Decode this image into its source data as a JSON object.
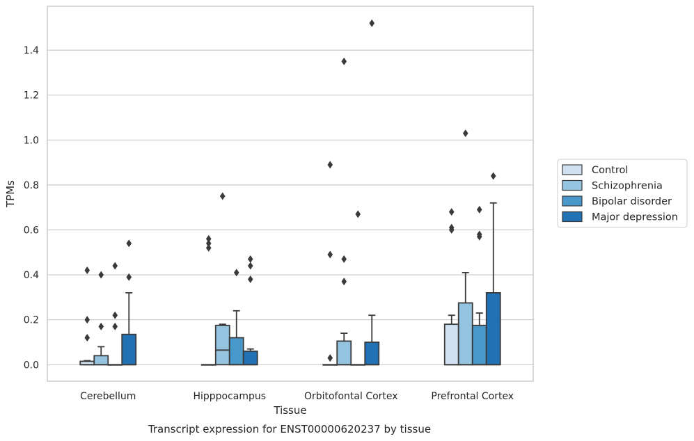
{
  "caption": "Transcript expression for ENST00000620237 by tissue",
  "colors": {
    "Control": "#d0e1f2",
    "Schizophrenia": "#94c4df",
    "Bipolar disorder": "#4a98c9",
    "Major depression": "#2171b5",
    "edge": "#3a3a3a",
    "grid": "#cccccc",
    "frame": "#cccccc"
  },
  "chart_data": {
    "type": "box",
    "xlabel": "Tissue",
    "ylabel": "TPMs",
    "ylim": [
      -0.075,
      1.59
    ],
    "yticks": [
      0.0,
      0.2,
      0.4,
      0.6,
      0.8,
      1.0,
      1.2,
      1.4
    ],
    "ytick_labels": [
      "0.0",
      "0.2",
      "0.4",
      "0.6",
      "0.8",
      "1.0",
      "1.2",
      "1.4"
    ],
    "grid": "horizontal",
    "legend_position": "right",
    "categories": [
      "Cerebellum",
      "Hipppocampus",
      "Orbitofontal Cortex",
      "Prefrontal Cortex"
    ],
    "series": [
      {
        "name": "Control",
        "boxes": [
          {
            "whislo": 0.0,
            "q1": 0.0,
            "med": 0.0,
            "q3": 0.015,
            "whishi": 0.018,
            "fliers": [
              0.12,
              0.2,
              0.42
            ]
          },
          {
            "whislo": 0.0,
            "q1": 0.0,
            "med": 0.0,
            "q3": 0.0,
            "whishi": 0.0,
            "fliers": [
              0.52,
              0.54,
              0.56
            ]
          },
          {
            "whislo": 0.0,
            "q1": 0.0,
            "med": 0.0,
            "q3": 0.0,
            "whishi": 0.0,
            "fliers": [
              0.03,
              0.49,
              0.89
            ]
          },
          {
            "whislo": 0.0,
            "q1": 0.0,
            "med": 0.0,
            "q3": 0.18,
            "whishi": 0.22,
            "fliers": [
              0.6,
              0.61,
              0.68
            ]
          }
        ]
      },
      {
        "name": "Schizophrenia",
        "boxes": [
          {
            "whislo": 0.0,
            "q1": 0.0,
            "med": 0.0,
            "q3": 0.04,
            "whishi": 0.08,
            "fliers": [
              0.17,
              0.4
            ]
          },
          {
            "whislo": 0.0,
            "q1": 0.0,
            "med": 0.065,
            "q3": 0.175,
            "whishi": 0.18,
            "fliers": [
              0.75
            ]
          },
          {
            "whislo": 0.0,
            "q1": 0.0,
            "med": 0.0,
            "q3": 0.105,
            "whishi": 0.14,
            "fliers": [
              0.37,
              0.47,
              1.35
            ]
          },
          {
            "whislo": 0.0,
            "q1": 0.0,
            "med": 0.0,
            "q3": 0.275,
            "whishi": 0.41,
            "fliers": [
              1.03
            ]
          }
        ]
      },
      {
        "name": "Bipolar disorder",
        "boxes": [
          {
            "whislo": 0.0,
            "q1": 0.0,
            "med": 0.0,
            "q3": 0.0,
            "whishi": 0.0,
            "fliers": [
              0.17,
              0.22,
              0.44
            ]
          },
          {
            "whislo": 0.0,
            "q1": 0.0,
            "med": 0.0,
            "q3": 0.12,
            "whishi": 0.24,
            "fliers": [
              0.41
            ]
          },
          {
            "whislo": 0.0,
            "q1": 0.0,
            "med": 0.0,
            "q3": 0.0,
            "whishi": 0.0,
            "fliers": [
              0.67
            ]
          },
          {
            "whislo": 0.0,
            "q1": 0.0,
            "med": 0.0,
            "q3": 0.175,
            "whishi": 0.23,
            "fliers": [
              0.57,
              0.58,
              0.69
            ]
          }
        ]
      },
      {
        "name": "Major depression",
        "boxes": [
          {
            "whislo": 0.0,
            "q1": 0.0,
            "med": 0.0,
            "q3": 0.135,
            "whishi": 0.32,
            "fliers": [
              0.39,
              0.54
            ]
          },
          {
            "whislo": 0.0,
            "q1": 0.0,
            "med": 0.0,
            "q3": 0.06,
            "whishi": 0.07,
            "fliers": [
              0.38,
              0.44,
              0.47
            ]
          },
          {
            "whislo": 0.0,
            "q1": 0.0,
            "med": 0.0,
            "q3": 0.1,
            "whishi": 0.22,
            "fliers": [
              1.52
            ]
          },
          {
            "whislo": 0.0,
            "q1": 0.0,
            "med": 0.0,
            "q3": 0.32,
            "whishi": 0.72,
            "fliers": [
              0.84
            ]
          }
        ]
      }
    ]
  }
}
